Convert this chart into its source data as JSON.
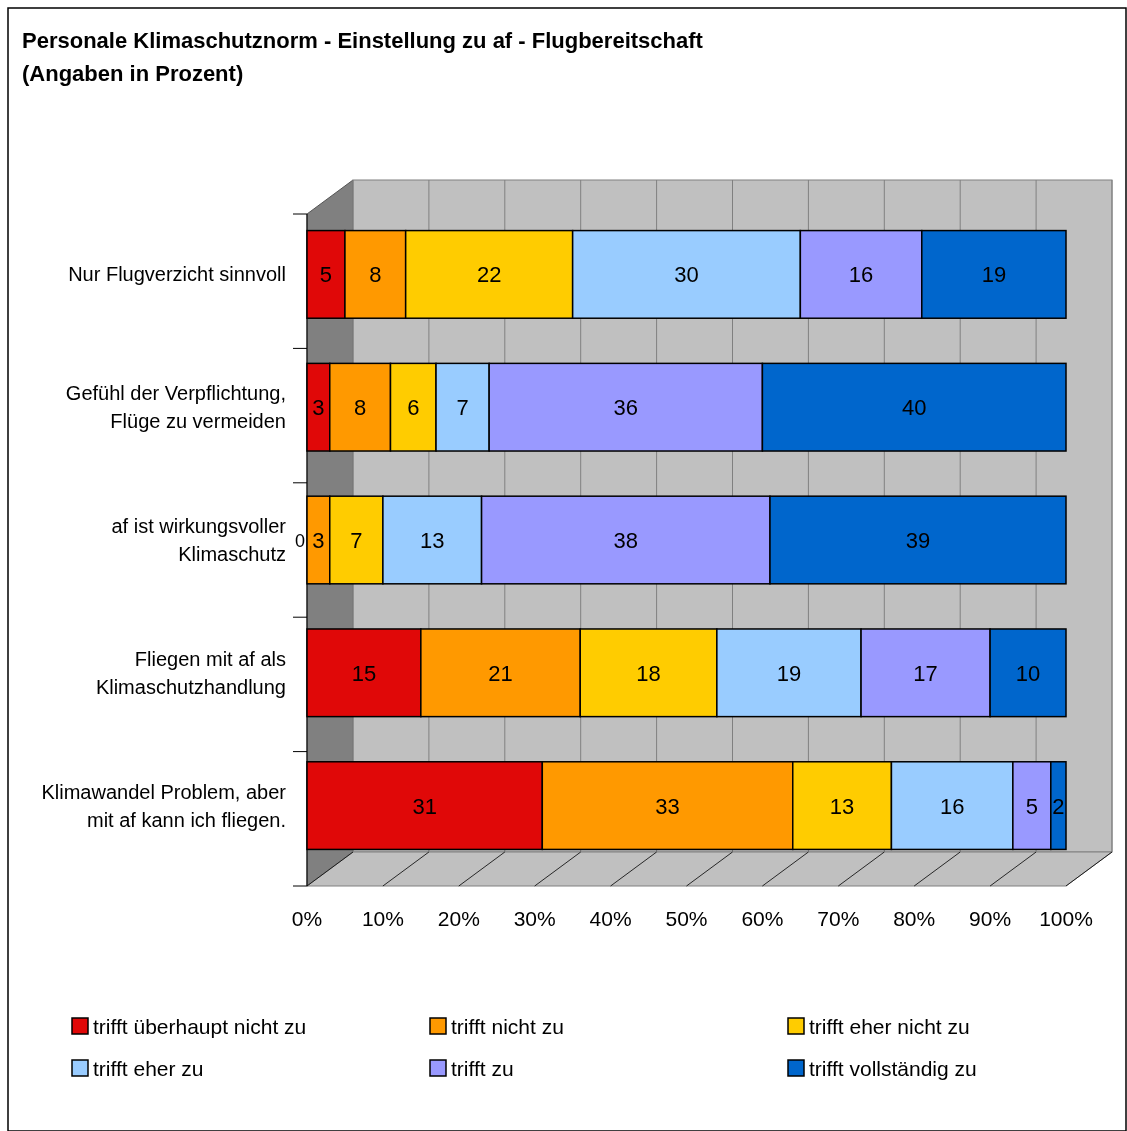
{
  "chart_data": {
    "type": "bar",
    "orientation": "horizontal",
    "stacked": true,
    "title": "Personale Klimaschutznorm - Einstellung zu af - Flugbereitschaft",
    "subtitle": "(Angaben in Prozent)",
    "categories": [
      "Nur Flugverzicht sinnvoll",
      "Gefühl der Verpflichtung, Flüge zu vermeiden",
      "af ist wirkungsvoller Klimaschutz",
      "Fliegen mit af als Klimaschutzhandlung",
      "Klimawandel Problem, aber mit af kann ich fliegen."
    ],
    "series": [
      {
        "name": "trifft überhaupt nicht zu",
        "color": "#e00808",
        "values": [
          5,
          3,
          0,
          15,
          31
        ],
        "value_labels": [
          "5",
          "3",
          null,
          "15",
          "31"
        ]
      },
      {
        "name": "trifft nicht zu",
        "color": "#ff9900",
        "values": [
          8,
          8,
          3,
          21,
          33
        ]
      },
      {
        "name": "trifft eher nicht zu",
        "color": "#ffcc00",
        "values": [
          22,
          6,
          7,
          18,
          13
        ]
      },
      {
        "name": "trifft eher zu",
        "color": "#99ccff",
        "values": [
          30,
          7,
          13,
          19,
          16
        ]
      },
      {
        "name": "trifft zu",
        "color": "#9999ff",
        "values": [
          16,
          36,
          38,
          17,
          5
        ]
      },
      {
        "name": "trifft vollständig zu",
        "color": "#0066cc",
        "values": [
          19,
          40,
          39,
          10,
          2
        ]
      }
    ],
    "xlim": [
      0,
      100
    ],
    "xticks": [
      {
        "value": 0,
        "label": "0%"
      },
      {
        "value": 10,
        "label": "10%"
      },
      {
        "value": 20,
        "label": "20%"
      },
      {
        "value": 30,
        "label": "30%"
      },
      {
        "value": 40,
        "label": "40%"
      },
      {
        "value": 50,
        "label": "50%"
      },
      {
        "value": 60,
        "label": "60%"
      },
      {
        "value": 70,
        "label": "70%"
      },
      {
        "value": 80,
        "label": "80%"
      },
      {
        "value": 90,
        "label": "90%"
      },
      {
        "value": 100,
        "label": "100%"
      }
    ],
    "annotations": [
      {
        "text": "0",
        "x": 0,
        "y": "af ist wirkungsvoller Klimaschutz"
      }
    ],
    "grid": "x",
    "data_labels": true,
    "legend": "bottom"
  }
}
